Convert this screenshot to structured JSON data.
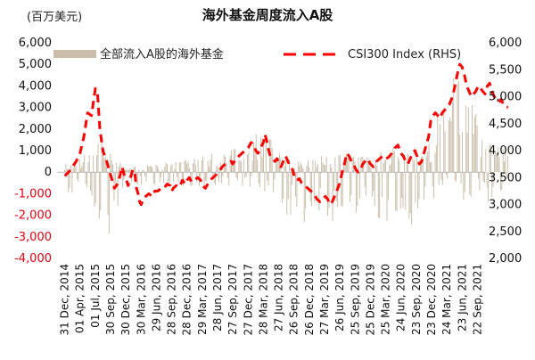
{
  "chart_data": {
    "type": "bar+line",
    "title": "海外基金周度流入A股",
    "unit_label": "(百万美元)",
    "colors": {
      "bars": "#c9bca8",
      "line": "#ff0000",
      "neg_tick": "#e3000f"
    },
    "left_axis": {
      "ylim": [
        -4000,
        6000
      ],
      "ticks": [
        "-4,000",
        "-3,000",
        "-2,000",
        "-1,000",
        "0",
        "1,000",
        "2,000",
        "3,000",
        "4,000",
        "5,000",
        "6,000"
      ]
    },
    "right_axis": {
      "ylim": [
        2000,
        6000
      ],
      "ticks": [
        "2,000",
        "2,500",
        "3,000",
        "3,500",
        "4,000",
        "4,500",
        "5,000",
        "5,500",
        "6,000"
      ]
    },
    "x_ticks": [
      "31 Dec, 2014",
      "01 Apr, 2015",
      "01 Jul, 2015",
      "30 Sep, 2015",
      "30 Dec, 2015",
      "30 Mar, 2016",
      "29 Jun, 2016",
      "28 Sep, 2016",
      "28 Dec, 2016",
      "29 Mar, 2017",
      "28 Jun, 2017",
      "27 Sep, 2017",
      "27 Dec, 2017",
      "28 Mar, 2018",
      "27 Jun, 2018",
      "26 Sep, 2018",
      "26 Dec, 2018",
      "27 Mar, 2019",
      "26 Jun, 2019",
      "25 Sep, 2019",
      "25 Dec, 2019",
      "25 Mar, 2020",
      "24 Jun, 2020",
      "23 Sep, 2020",
      "23 Dec, 2020",
      "24 Mar, 2021",
      "23 Jun, 2021",
      "22 Sep, 2021"
    ],
    "legend": {
      "bars": "全部流入A股的海外基金",
      "line": "CSI300 Index (RHS)",
      "position": "top"
    },
    "csi300": [
      [
        0,
        3530
      ],
      [
        0.5,
        3600
      ],
      [
        1,
        3700
      ],
      [
        1.5,
        3800
      ],
      [
        2,
        3950
      ],
      [
        2.5,
        4250
      ],
      [
        3,
        4700
      ],
      [
        3.5,
        4650
      ],
      [
        4,
        5150
      ],
      [
        4.3,
        5050
      ],
      [
        4.6,
        4400
      ],
      [
        5,
        4000
      ],
      [
        5.5,
        3800
      ],
      [
        6,
        3550
      ],
      [
        6.5,
        3300
      ],
      [
        7,
        3400
      ],
      [
        7.5,
        3700
      ],
      [
        7.8,
        3550
      ],
      [
        8,
        3500
      ],
      [
        8.3,
        3350
      ],
      [
        8.6,
        3500
      ],
      [
        8.9,
        3650
      ],
      [
        9.2,
        3550
      ],
      [
        9.4,
        3300
      ],
      [
        9.6,
        3200
      ],
      [
        9.8,
        3050
      ],
      [
        10,
        3000
      ],
      [
        10.3,
        3100
      ],
      [
        10.6,
        3150
      ],
      [
        11,
        3200
      ],
      [
        11.4,
        3150
      ],
      [
        11.8,
        3250
      ],
      [
        12.2,
        3250
      ],
      [
        12.6,
        3300
      ],
      [
        13,
        3300
      ],
      [
        13.4,
        3380
      ],
      [
        13.8,
        3350
      ],
      [
        14,
        3250
      ],
      [
        14.2,
        3300
      ],
      [
        14.6,
        3350
      ],
      [
        15,
        3320
      ],
      [
        15.4,
        3450
      ],
      [
        15.8,
        3380
      ],
      [
        16,
        3450
      ],
      [
        16.3,
        3500
      ],
      [
        16.6,
        3420
      ],
      [
        17,
        3450
      ],
      [
        17.4,
        3500
      ],
      [
        17.8,
        3450
      ],
      [
        18,
        3350
      ],
      [
        18.4,
        3300
      ],
      [
        18.8,
        3400
      ],
      [
        19,
        3450
      ],
      [
        19.4,
        3500
      ],
      [
        19.8,
        3550
      ],
      [
        20,
        3600
      ],
      [
        20.3,
        3630
      ],
      [
        20.6,
        3700
      ],
      [
        21,
        3750
      ],
      [
        21.4,
        3780
      ],
      [
        21.8,
        3800
      ],
      [
        22,
        3750
      ],
      [
        22.4,
        3850
      ],
      [
        22.8,
        3900
      ],
      [
        23.2,
        3950
      ],
      [
        23.6,
        4000
      ],
      [
        24,
        4050
      ],
      [
        24.4,
        4150
      ],
      [
        24.7,
        4100
      ],
      [
        25,
        4000
      ],
      [
        25.3,
        3950
      ],
      [
        25.6,
        4050
      ],
      [
        26,
        4150
      ],
      [
        26.2,
        4300
      ],
      [
        26.4,
        4200
      ],
      [
        26.6,
        4050
      ],
      [
        26.9,
        3900
      ],
      [
        27.2,
        3850
      ],
      [
        27.5,
        3800
      ],
      [
        27.8,
        3850
      ],
      [
        28,
        3750
      ],
      [
        28.3,
        3700
      ],
      [
        28.6,
        3800
      ],
      [
        28.9,
        3900
      ],
      [
        29.2,
        3800
      ],
      [
        29.5,
        3700
      ],
      [
        29.8,
        3650
      ],
      [
        30.1,
        3500
      ],
      [
        30.4,
        3450
      ],
      [
        30.7,
        3480
      ],
      [
        31,
        3400
      ],
      [
        31.4,
        3350
      ],
      [
        31.8,
        3300
      ],
      [
        32.2,
        3250
      ],
      [
        32.6,
        3200
      ],
      [
        33,
        3100
      ],
      [
        33.4,
        3050
      ],
      [
        33.8,
        3100
      ],
      [
        34.1,
        3150
      ],
      [
        34.4,
        3100
      ],
      [
        34.7,
        3000
      ],
      [
        35,
        3050
      ],
      [
        35.3,
        3150
      ],
      [
        35.6,
        3250
      ],
      [
        36,
        3400
      ],
      [
        36.3,
        3600
      ],
      [
        36.6,
        3750
      ],
      [
        36.9,
        3950
      ],
      [
        37.2,
        3900
      ],
      [
        37.5,
        3800
      ],
      [
        37.8,
        3750
      ],
      [
        38.1,
        3650
      ],
      [
        38.4,
        3600
      ],
      [
        38.7,
        3650
      ],
      [
        39,
        3750
      ],
      [
        39.3,
        3800
      ],
      [
        39.6,
        3850
      ],
      [
        40,
        3750
      ],
      [
        40.4,
        3700
      ],
      [
        40.8,
        3800
      ],
      [
        41.2,
        3850
      ],
      [
        41.6,
        3900
      ],
      [
        42,
        3850
      ],
      [
        42.4,
        3880
      ],
      [
        42.8,
        3950
      ],
      [
        43.2,
        4050
      ],
      [
        43.6,
        4100
      ],
      [
        44,
        3950
      ],
      [
        44.3,
        3900
      ],
      [
        44.6,
        3800
      ],
      [
        44.9,
        3750
      ],
      [
        45.2,
        3850
      ],
      [
        45.5,
        3950
      ],
      [
        45.8,
        4000
      ],
      [
        46.1,
        3900
      ],
      [
        46.4,
        3750
      ],
      [
        46.7,
        3800
      ],
      [
        47,
        3950
      ],
      [
        47.3,
        4100
      ],
      [
        47.6,
        4250
      ],
      [
        47.9,
        4550
      ],
      [
        48.2,
        4650
      ],
      [
        48.5,
        4700
      ],
      [
        48.8,
        4650
      ],
      [
        49.1,
        4600
      ],
      [
        49.4,
        4700
      ],
      [
        49.7,
        4750
      ],
      [
        50,
        4800
      ],
      [
        50.3,
        4850
      ],
      [
        50.6,
        4950
      ],
      [
        50.9,
        5100
      ],
      [
        51.2,
        5300
      ],
      [
        51.5,
        5500
      ],
      [
        51.7,
        5600
      ],
      [
        52,
        5550
      ],
      [
        52.3,
        5400
      ],
      [
        52.6,
        5200
      ],
      [
        52.9,
        5100
      ],
      [
        53.2,
        5000
      ],
      [
        53.5,
        5050
      ],
      [
        53.8,
        5100
      ],
      [
        54.1,
        5200
      ],
      [
        54.4,
        5150
      ],
      [
        54.7,
        5100
      ],
      [
        55,
        5050
      ],
      [
        55.3,
        5200
      ],
      [
        55.6,
        5250
      ],
      [
        55.9,
        5100
      ],
      [
        56.2,
        5000
      ],
      [
        56.5,
        4950
      ],
      [
        56.8,
        4900
      ],
      [
        57.1,
        4950
      ],
      [
        57.4,
        4850
      ],
      [
        57.7,
        4820
      ],
      [
        58,
        4800
      ]
    ]
  }
}
